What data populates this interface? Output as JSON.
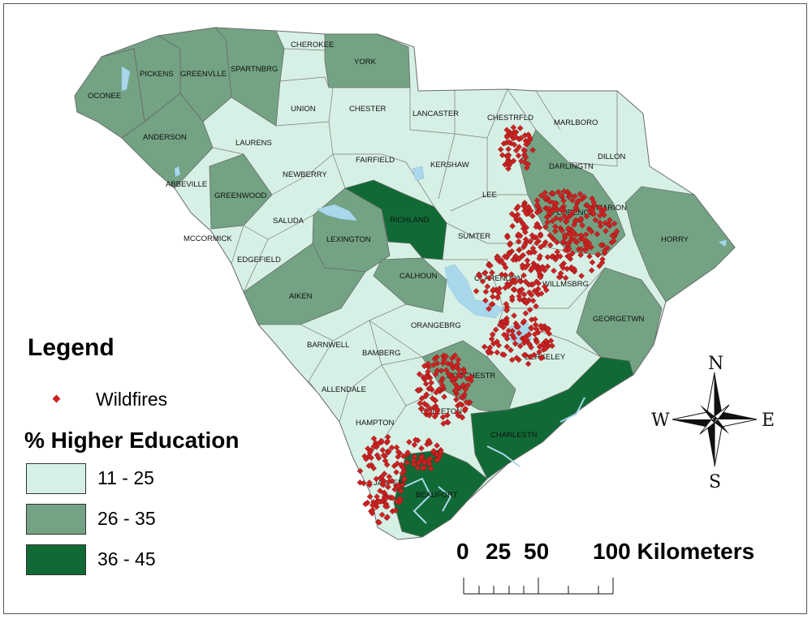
{
  "legend": {
    "title": "Legend",
    "wildfires_label": "Wildfires",
    "education_heading": "% Higher Education",
    "classes": [
      {
        "label": "11 - 25",
        "color": "#d7f0e5"
      },
      {
        "label": "26 - 35",
        "color": "#73a383"
      },
      {
        "label": "36 - 45",
        "color": "#116a35"
      }
    ],
    "wildfire_color": "#cc2222"
  },
  "scale_bar": {
    "tick_labels": [
      "0",
      "25",
      "50",
      "100 Kilometers"
    ]
  },
  "compass": {
    "n": "N",
    "s": "S",
    "e": "E",
    "w": "W"
  },
  "water_color": "#a9d7ec",
  "counties": [
    {
      "name": "CHEROKEE",
      "class": 1
    },
    {
      "name": "YORK",
      "class": 2
    },
    {
      "name": "PICKENS",
      "class": 2
    },
    {
      "name": "GREENVLLE",
      "class": 2
    },
    {
      "name": "SPARTNBRG",
      "class": 2
    },
    {
      "name": "OCONEE",
      "class": 2
    },
    {
      "name": "UNION",
      "class": 1
    },
    {
      "name": "CHESTER",
      "class": 1
    },
    {
      "name": "LANCASTER",
      "class": 1
    },
    {
      "name": "CHESTRFLD",
      "class": 1
    },
    {
      "name": "MARLBORO",
      "class": 1
    },
    {
      "name": "ANDERSON",
      "class": 2
    },
    {
      "name": "LAURENS",
      "class": 1
    },
    {
      "name": "FAIRFIELD",
      "class": 1
    },
    {
      "name": "KERSHAW",
      "class": 1
    },
    {
      "name": "DARLINGTN",
      "class": 2
    },
    {
      "name": "DILLON",
      "class": 1
    },
    {
      "name": "ABBEVILLE",
      "class": 1
    },
    {
      "name": "NEWBERRY",
      "class": 1
    },
    {
      "name": "GREENWOOD",
      "class": 2
    },
    {
      "name": "LEE",
      "class": 1
    },
    {
      "name": "RICHLAND",
      "class": 3
    },
    {
      "name": "FLORENCE",
      "class": 2
    },
    {
      "name": "MARION",
      "class": 1
    },
    {
      "name": "SALUDA",
      "class": 1
    },
    {
      "name": "HORRY",
      "class": 2
    },
    {
      "name": "MCCORMICK",
      "class": 1
    },
    {
      "name": "LEXINGTON",
      "class": 2
    },
    {
      "name": "SUMTER",
      "class": 1
    },
    {
      "name": "EDGEFIELD",
      "class": 1
    },
    {
      "name": "CALHOUN",
      "class": 2
    },
    {
      "name": "CLARENDON",
      "class": 1
    },
    {
      "name": "WILLMSBRG",
      "class": 1
    },
    {
      "name": "AIKEN",
      "class": 2
    },
    {
      "name": "GEORGETWN",
      "class": 2
    },
    {
      "name": "ORANGEBRG",
      "class": 1
    },
    {
      "name": "BARNWELL",
      "class": 1
    },
    {
      "name": "BAMBERG",
      "class": 1
    },
    {
      "name": "BERKELEY",
      "class": 1
    },
    {
      "name": "DORCHESTR",
      "class": 2
    },
    {
      "name": "ALLENDALE",
      "class": 1
    },
    {
      "name": "COLLETON",
      "class": 1
    },
    {
      "name": "HAMPTON",
      "class": 1
    },
    {
      "name": "CHARLESTN",
      "class": 3
    },
    {
      "name": "JASPER",
      "class": 1
    },
    {
      "name": "BEAUFORT",
      "class": 3
    }
  ]
}
